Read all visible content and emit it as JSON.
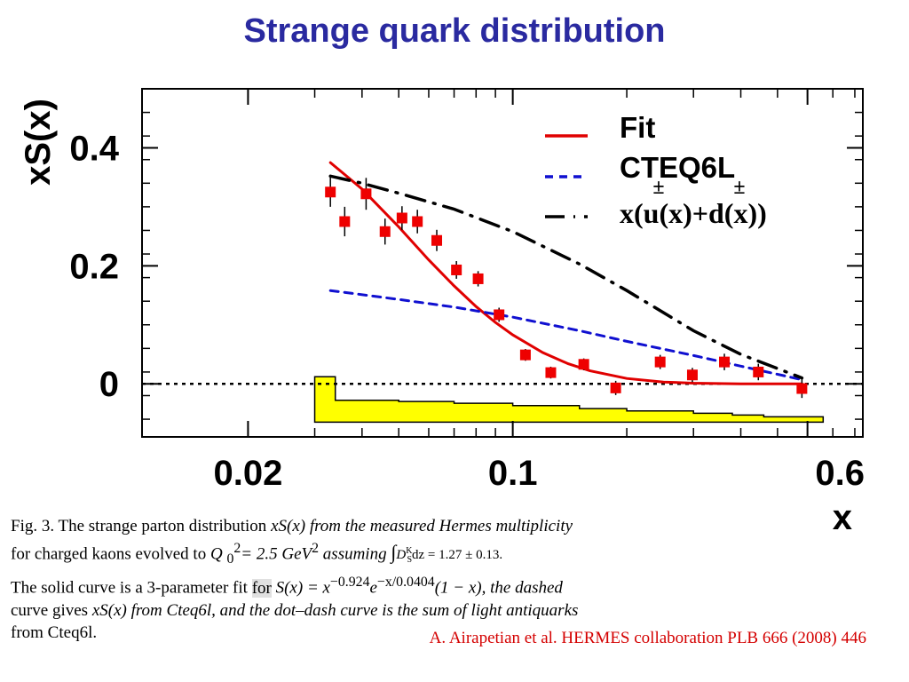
{
  "title": "Strange quark distribution",
  "chart_data": {
    "type": "scatter",
    "xlabel": "x",
    "ylabel": "xS(x)",
    "x_scale": "log",
    "xlim": [
      0.0105,
      0.84
    ],
    "ylim": [
      -0.09,
      0.5
    ],
    "x_ticks": [
      {
        "v": 0.02,
        "label": "0.02"
      },
      {
        "v": 0.1,
        "label": "0.1"
      },
      {
        "v": 0.6,
        "label": "0.6"
      }
    ],
    "y_ticks": [
      {
        "v": 0,
        "label": "0"
      },
      {
        "v": 0.2,
        "label": "0.2"
      },
      {
        "v": 0.4,
        "label": "0.4"
      }
    ],
    "zero_line": true,
    "points": [
      {
        "x": 0.033,
        "y": 0.325,
        "err": 0.025
      },
      {
        "x": 0.036,
        "y": 0.275,
        "err": 0.025
      },
      {
        "x": 0.041,
        "y": 0.322,
        "err": 0.027
      },
      {
        "x": 0.046,
        "y": 0.258,
        "err": 0.022
      },
      {
        "x": 0.051,
        "y": 0.281,
        "err": 0.02
      },
      {
        "x": 0.056,
        "y": 0.275,
        "err": 0.02
      },
      {
        "x": 0.063,
        "y": 0.243,
        "err": 0.018
      },
      {
        "x": 0.071,
        "y": 0.193,
        "err": 0.015
      },
      {
        "x": 0.081,
        "y": 0.178,
        "err": 0.013
      },
      {
        "x": 0.092,
        "y": 0.117,
        "err": 0.012
      },
      {
        "x": 0.108,
        "y": 0.049,
        "err": 0.01
      },
      {
        "x": 0.126,
        "y": 0.019,
        "err": 0.01
      },
      {
        "x": 0.154,
        "y": 0.033,
        "err": 0.01
      },
      {
        "x": 0.187,
        "y": -0.007,
        "err": 0.012
      },
      {
        "x": 0.245,
        "y": 0.037,
        "err": 0.012
      },
      {
        "x": 0.298,
        "y": 0.015,
        "err": 0.012
      },
      {
        "x": 0.362,
        "y": 0.037,
        "err": 0.014
      },
      {
        "x": 0.445,
        "y": 0.02,
        "err": 0.014
      },
      {
        "x": 0.58,
        "y": -0.008,
        "err": 0.016
      }
    ],
    "series": [
      {
        "name": "Fit",
        "color": "#e00000",
        "style": "solid",
        "x": [
          0.033,
          0.04,
          0.05,
          0.06,
          0.07,
          0.08,
          0.09,
          0.1,
          0.12,
          0.14,
          0.16,
          0.2,
          0.25,
          0.3,
          0.4,
          0.58
        ],
        "y": [
          0.375,
          0.33,
          0.266,
          0.21,
          0.166,
          0.131,
          0.104,
          0.083,
          0.053,
          0.034,
          0.022,
          0.009,
          0.003,
          0.001,
          0.0,
          0.0
        ]
      },
      {
        "name": "CTEQ6L",
        "color": "#1010d0",
        "style": "dashed",
        "x": [
          0.033,
          0.05,
          0.07,
          0.1,
          0.15,
          0.2,
          0.3,
          0.4,
          0.58
        ],
        "y": [
          0.158,
          0.143,
          0.13,
          0.113,
          0.09,
          0.072,
          0.048,
          0.03,
          0.007
        ]
      },
      {
        "name": "x(u(x)+d(x))",
        "color": "#000000",
        "style": "dashdot",
        "x": [
          0.033,
          0.04,
          0.05,
          0.07,
          0.1,
          0.15,
          0.2,
          0.3,
          0.4,
          0.58
        ],
        "y": [
          0.352,
          0.34,
          0.323,
          0.296,
          0.258,
          0.203,
          0.158,
          0.09,
          0.05,
          0.01
        ]
      }
    ],
    "band": {
      "color": "#ffff00",
      "x": [
        0.03,
        0.034,
        0.05,
        0.07,
        0.1,
        0.15,
        0.2,
        0.3,
        0.38,
        0.46,
        0.66
      ],
      "y": [
        0.012,
        -0.028,
        -0.03,
        -0.033,
        -0.037,
        -0.042,
        -0.046,
        -0.05,
        -0.053,
        -0.056,
        -0.064
      ]
    },
    "legend": {
      "position": "top-right",
      "entries": [
        "Fit",
        "CTEQ6L",
        "x(u(x)+d(x))"
      ],
      "overbar_glyph": "±"
    }
  },
  "caption": {
    "line1_a": "Fig. 3. The strange parton distribution ",
    "line1_b": "xS(x) from the measured Hermes multiplicity",
    "line2_a": "for charged kaons evolved to ",
    "line2_b": "Q ",
    "line2_sub": "0",
    "line2_sup": "2",
    "line2_c": "= 2.5 GeV",
    "line2_sup2": "2",
    "line2_d": " assuming ",
    "integral": "∫",
    "integral_d": "D",
    "integral_sup": "K",
    "integral_sub": "S",
    "integral_rest": "dz = 1.27 ± 0.13.",
    "line3_a": "The solid curve is a 3-parameter fit ",
    "line3_for": "for",
    "line3_b": " S(x) = x",
    "line3_sup1": "−0.924",
    "line3_c": "e",
    "line3_sup2": "−x/0.0404",
    "line3_d": "(1 − x), the dashed",
    "line4_a": "curve gives ",
    "line4_b": "xS(x) from Cteq6l, and the dot–dash curve is the sum of light antiquarks",
    "line5": "from Cteq6l."
  },
  "citation": "A. Airapetian et al. HERMES collaboration  PLB 666 (2008) 446"
}
